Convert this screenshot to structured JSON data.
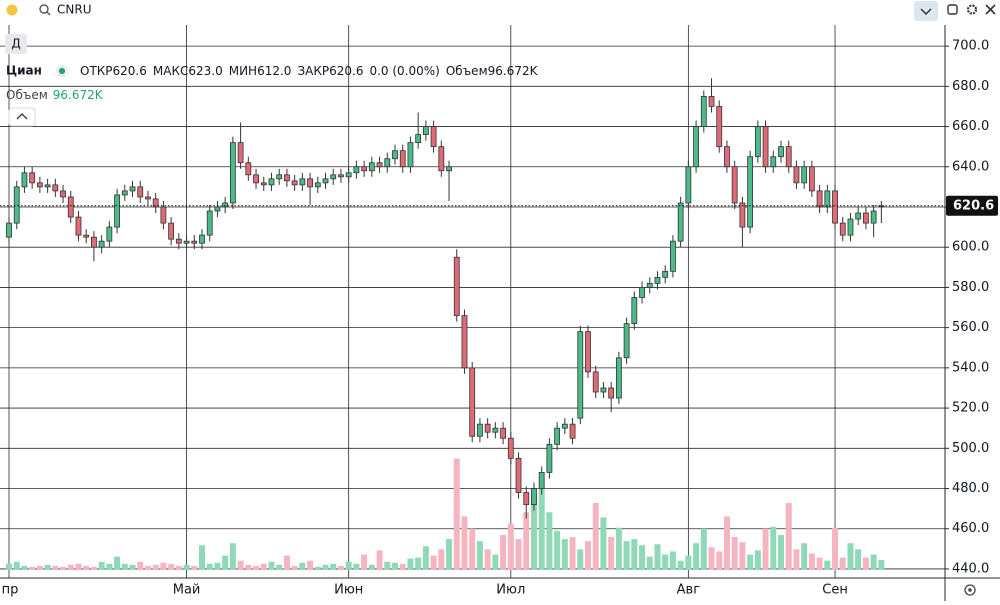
{
  "toolbar": {
    "symbol": "CNRU",
    "interval": "Д"
  },
  "legend": {
    "open_label": "ОТКР",
    "open": "620.6",
    "high_label": "МАКС",
    "high": "623.0",
    "low_label": "МИН",
    "low": "612.0",
    "close_label": "ЗАКР",
    "close": "620.6",
    "change": "0.0 (0.00%)",
    "volume_label": "Объем",
    "volume": "96.672K"
  },
  "chart_data": {
    "type": "candlestick",
    "categories": [
      "пр",
      null,
      null,
      null,
      null,
      null,
      null,
      null,
      null,
      null,
      null,
      null,
      null,
      null,
      null,
      null,
      null,
      null,
      null,
      null,
      null,
      null,
      null,
      "Май",
      null,
      null,
      null,
      null,
      null,
      null,
      null,
      null,
      null,
      null,
      null,
      null,
      null,
      null,
      null,
      null,
      null,
      null,
      null,
      null,
      "Июн",
      null,
      null,
      null,
      null,
      null,
      null,
      null,
      null,
      null,
      null,
      null,
      null,
      null,
      null,
      null,
      null,
      null,
      null,
      null,
      null,
      "Июл",
      null,
      null,
      null,
      null,
      null,
      null,
      null,
      null,
      null,
      null,
      null,
      null,
      null,
      null,
      null,
      null,
      null,
      null,
      null,
      null,
      null,
      null,
      "Авг",
      null,
      null,
      null,
      null,
      null,
      null,
      null,
      null,
      null,
      null,
      null,
      null,
      null,
      null,
      null,
      null,
      null,
      null,
      "Сен",
      null,
      null,
      null,
      null,
      null,
      null
    ],
    "series": [
      {
        "name": "Циан",
        "open": [
          605,
          612,
          630,
          637,
          632,
          630,
          631,
          628,
          625,
          615,
          606,
          605,
          600,
          603,
          610,
          626,
          628,
          630,
          625,
          624,
          620,
          612,
          604,
          602,
          603,
          602,
          606,
          618,
          620,
          622,
          652,
          642,
          636,
          632,
          631,
          634,
          636,
          633,
          631,
          634,
          630,
          632,
          634,
          636,
          635,
          637,
          640,
          638,
          642,
          640,
          644,
          648,
          640,
          652,
          656,
          660,
          650,
          638,
          595,
          566,
          540,
          506,
          512,
          508,
          510,
          505,
          495,
          478,
          472,
          480,
          488,
          502,
          510,
          512,
          515,
          558,
          538,
          528,
          530,
          525,
          545,
          562,
          575,
          580,
          582,
          585,
          588,
          603,
          622,
          640,
          660,
          675,
          670,
          650,
          640,
          622,
          610,
          645,
          660,
          640,
          645,
          650,
          640,
          632,
          640,
          628,
          620,
          628,
          612,
          606,
          614,
          617,
          612,
          620.6
        ],
        "high": [
          615,
          633,
          640,
          640,
          635,
          634,
          634,
          631,
          628,
          618,
          609,
          608,
          606,
          613,
          629,
          631,
          633,
          633,
          628,
          627,
          623,
          615,
          607,
          606,
          606,
          609,
          621,
          623,
          625,
          655,
          662,
          645,
          639,
          635,
          637,
          639,
          639,
          636,
          637,
          637,
          635,
          637,
          639,
          639,
          640,
          643,
          643,
          645,
          645,
          647,
          651,
          651,
          655,
          667,
          663,
          663,
          653,
          643,
          599,
          569,
          543,
          515,
          515,
          513,
          513,
          508,
          498,
          481,
          483,
          491,
          505,
          513,
          515,
          515,
          561,
          561,
          541,
          533,
          533,
          548,
          565,
          578,
          583,
          585,
          588,
          591,
          606,
          625,
          643,
          663,
          678,
          684,
          673,
          653,
          643,
          625,
          648,
          663,
          663,
          648,
          653,
          653,
          643,
          643,
          643,
          631,
          631,
          631,
          615,
          617,
          620,
          620,
          621,
          623
        ],
        "low": [
          602,
          609,
          627,
          629,
          627,
          627,
          625,
          622,
          612,
          603,
          602,
          593,
          597,
          600,
          607,
          623,
          625,
          622,
          621,
          617,
          609,
          601,
          599,
          599,
          599,
          599,
          603,
          615,
          617,
          619,
          639,
          633,
          629,
          628,
          628,
          631,
          630,
          628,
          628,
          621,
          627,
          629,
          631,
          632,
          632,
          634,
          635,
          635,
          637,
          637,
          641,
          637,
          637,
          649,
          653,
          647,
          635,
          623,
          563,
          537,
          503,
          503,
          505,
          505,
          502,
          492,
          475,
          465,
          469,
          477,
          485,
          499,
          507,
          502,
          512,
          535,
          525,
          525,
          518,
          522,
          542,
          559,
          572,
          577,
          579,
          582,
          585,
          600,
          619,
          637,
          657,
          667,
          647,
          637,
          619,
          600,
          607,
          642,
          637,
          637,
          642,
          637,
          629,
          629,
          625,
          617,
          617,
          609,
          603,
          603,
          611,
          609,
          605,
          612
        ],
        "close": [
          612,
          630,
          637,
          632,
          630,
          631,
          628,
          625,
          615,
          606,
          605,
          600,
          603,
          610,
          626,
          628,
          630,
          625,
          624,
          620,
          612,
          604,
          602,
          603,
          602,
          606,
          618,
          620,
          622,
          652,
          642,
          636,
          632,
          631,
          634,
          636,
          633,
          631,
          634,
          630,
          632,
          634,
          636,
          635,
          637,
          640,
          638,
          642,
          640,
          644,
          648,
          640,
          652,
          656,
          660,
          650,
          638,
          640,
          566,
          540,
          506,
          512,
          508,
          510,
          505,
          495,
          478,
          472,
          480,
          488,
          502,
          510,
          512,
          505,
          558,
          538,
          528,
          530,
          525,
          545,
          562,
          575,
          580,
          582,
          585,
          588,
          603,
          622,
          640,
          660,
          675,
          670,
          650,
          640,
          622,
          610,
          645,
          660,
          640,
          645,
          650,
          640,
          632,
          640,
          628,
          620,
          628,
          612,
          606,
          614,
          617,
          612,
          618,
          620.6
        ],
        "volume": [
          60,
          80,
          40,
          30,
          40,
          50,
          40,
          30,
          50,
          60,
          40,
          30,
          80,
          60,
          130,
          60,
          50,
          80,
          40,
          50,
          70,
          60,
          40,
          50,
          40,
          240,
          60,
          70,
          140,
          260,
          90,
          50,
          40,
          60,
          80,
          50,
          140,
          40,
          70,
          90,
          30,
          50,
          60,
          40,
          80,
          60,
          150,
          50,
          190,
          80,
          70,
          60,
          110,
          120,
          230,
          140,
          200,
          300,
          1080,
          520,
          400,
          280,
          200,
          150,
          340,
          450,
          300,
          560,
          720,
          820,
          560,
          380,
          300,
          320,
          200,
          280,
          650,
          510,
          320,
          410,
          280,
          300,
          240,
          130,
          250,
          150,
          180,
          90,
          140,
          260,
          400,
          220,
          180,
          520,
          320,
          270,
          150,
          190,
          400,
          420,
          340,
          650,
          200,
          260,
          160,
          120,
          90,
          410,
          120,
          260,
          200,
          120,
          150,
          96.672
        ]
      }
    ],
    "ylim": [
      435.5,
      710.5
    ],
    "yticks": [
      {
        "value": 440,
        "label": "440.0"
      },
      {
        "value": 460,
        "label": "460.0"
      },
      {
        "value": 480,
        "label": "480.0"
      },
      {
        "value": 500,
        "label": "500.0"
      },
      {
        "value": 520,
        "label": "520.0"
      },
      {
        "value": 540,
        "label": "540.0"
      },
      {
        "value": 560,
        "label": "560.0"
      },
      {
        "value": 580,
        "label": "580.0"
      },
      {
        "value": 600,
        "label": "600.0"
      },
      {
        "value": 620,
        "label": "620.0"
      },
      {
        "value": 640,
        "label": "640.0"
      },
      {
        "value": 660,
        "label": "660.0"
      },
      {
        "value": 680,
        "label": "680.0"
      },
      {
        "value": 700,
        "label": "700.0"
      }
    ],
    "grid": true,
    "up_color": "#4cbb8a",
    "down_color": "#e06b78",
    "outline_color": "#333333",
    "volume_up_color": "#8fd8b8",
    "volume_down_color": "#f5b5c0",
    "legend_value_color": "#26a27a"
  }
}
